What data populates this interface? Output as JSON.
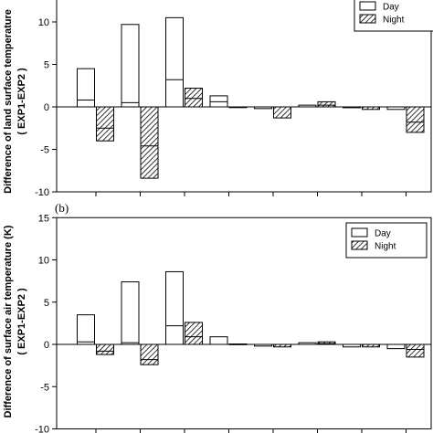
{
  "chart_data": [
    {
      "type": "bar",
      "panel_label": "",
      "ylabel_line1": "Difference of land surface temperature",
      "ylabel_line2": "( EXP1-EXP2 )",
      "ylim": [
        -10,
        15
      ],
      "yticks": [
        -10,
        -5,
        0,
        5,
        10
      ],
      "legend": {
        "placement": "top-right",
        "entries": [
          "Day",
          "Night"
        ]
      },
      "series": [
        {
          "name": "Day",
          "values": [
            4.5,
            9.7,
            10.5,
            1.3,
            -0.2,
            0.2,
            -0.1,
            -0.3
          ],
          "inner_values": [
            0.8,
            0.5,
            3.2,
            0.6,
            0,
            0,
            0,
            0
          ]
        },
        {
          "name": "Night",
          "values": [
            -4.0,
            -8.4,
            2.2,
            0,
            -1.3,
            0.6,
            -0.3,
            -3.0
          ],
          "inner_values": [
            -2.5,
            -4.6,
            1.0,
            0,
            0,
            0.2,
            0,
            -1.8
          ]
        }
      ]
    },
    {
      "type": "bar",
      "panel_label": "(b)",
      "ylabel_line1": "Difference of surface air temperature (K)",
      "ylabel_line2": "( EXP1-EXP2 )",
      "ylim": [
        -10,
        15
      ],
      "yticks": [
        -10,
        -5,
        0,
        5,
        10,
        15
      ],
      "legend": {
        "placement": "top-right",
        "entries": [
          "Day",
          "Night"
        ]
      },
      "series": [
        {
          "name": "Day",
          "values": [
            3.5,
            7.4,
            8.6,
            0.9,
            -0.2,
            0.2,
            -0.3,
            -0.5
          ],
          "inner_values": [
            0.3,
            0.2,
            2.2,
            0,
            0,
            0,
            0,
            0
          ]
        },
        {
          "name": "Night",
          "values": [
            -1.2,
            -2.4,
            2.6,
            0.05,
            -0.3,
            0.3,
            -0.3,
            -1.5
          ],
          "inner_values": [
            -0.8,
            -1.8,
            0.9,
            0,
            0,
            0.1,
            0,
            -0.6
          ]
        }
      ]
    }
  ]
}
